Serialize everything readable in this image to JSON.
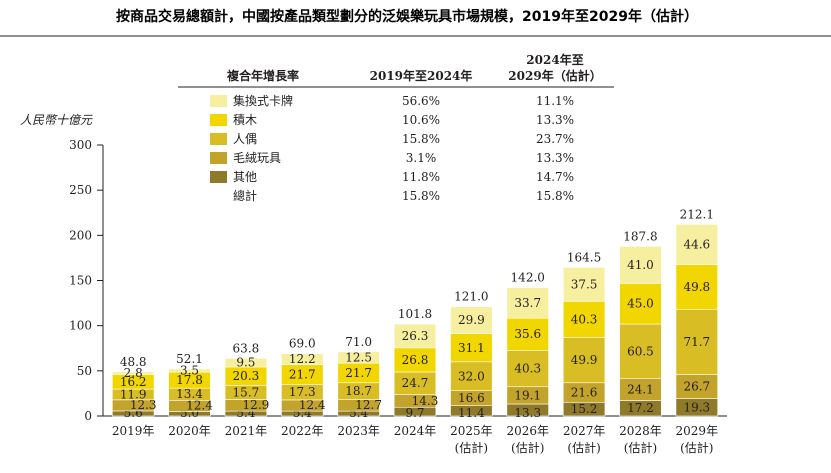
{
  "chart_data": {
    "type": "bar",
    "stacked": true,
    "title": "按商品交易總額計，中國按產品類型劃分的泛娛樂玩具市場規模，2019年至2029年（估計）",
    "ylabel": "人民幣十億元",
    "ylim": [
      0,
      300
    ],
    "yticks": [
      "0",
      "50",
      "100",
      "150",
      "200",
      "250",
      "300"
    ],
    "categories": [
      [
        "2019年"
      ],
      [
        "2020年"
      ],
      [
        "2021年"
      ],
      [
        "2022年"
      ],
      [
        "2023年"
      ],
      [
        "2024年"
      ],
      [
        "2025年",
        "(估計)"
      ],
      [
        "2026年",
        "(估計)"
      ],
      [
        "2027年",
        "(估計)"
      ],
      [
        "2028年",
        "(估計)"
      ],
      [
        "2029年",
        "(估計)"
      ]
    ],
    "series": [
      {
        "name": "其他",
        "color": "#8f7a2a",
        "values": [
          5.6,
          5.0,
          5.4,
          5.4,
          5.4,
          9.7,
          11.4,
          13.3,
          15.2,
          17.2,
          19.3
        ]
      },
      {
        "name": "毛絨玩具",
        "color": "#c2a32c",
        "values": [
          12.3,
          12.4,
          12.9,
          12.4,
          12.7,
          14.3,
          16.6,
          19.1,
          21.6,
          24.1,
          26.7
        ]
      },
      {
        "name": "人偶",
        "color": "#d9bd25",
        "values": [
          11.9,
          13.4,
          15.7,
          17.3,
          18.7,
          24.7,
          32.0,
          40.3,
          49.9,
          60.5,
          71.7
        ]
      },
      {
        "name": "積木",
        "color": "#f2d600",
        "values": [
          16.2,
          17.8,
          20.3,
          21.7,
          21.7,
          26.8,
          31.1,
          35.6,
          40.3,
          45.0,
          49.8
        ]
      },
      {
        "name": "集換式卡牌",
        "color": "#f7efa0",
        "values": [
          2.8,
          3.5,
          9.5,
          12.2,
          12.5,
          26.3,
          29.9,
          33.7,
          37.5,
          41.0,
          44.6
        ]
      }
    ],
    "totals": [
      "48.8",
      "52.1",
      "63.8",
      "69.0",
      "71.0",
      "101.8",
      "121.0",
      "142.0",
      "164.5",
      "187.8",
      "212.1"
    ],
    "cagr_table": {
      "header": "複合年增長率",
      "col1": "2019年至2024年",
      "col2_line1": "2024年至",
      "col2_line2": "2029年（估計）",
      "rows": [
        {
          "name": "集換式卡牌",
          "color": "#f7efa0",
          "c1": "56.6%",
          "c2": "11.1%"
        },
        {
          "name": "積木",
          "color": "#f2d600",
          "c1": "10.6%",
          "c2": "13.3%"
        },
        {
          "name": "人偶",
          "color": "#d9bd25",
          "c1": "15.8%",
          "c2": "23.7%"
        },
        {
          "name": "毛絨玩具",
          "color": "#c2a32c",
          "c1": "3.1%",
          "c2": "13.3%"
        },
        {
          "name": "其他",
          "color": "#8f7a2a",
          "c1": "11.8%",
          "c2": "14.7%"
        },
        {
          "name": "總計",
          "c1": "15.8%",
          "c2": "15.8%"
        }
      ]
    }
  }
}
